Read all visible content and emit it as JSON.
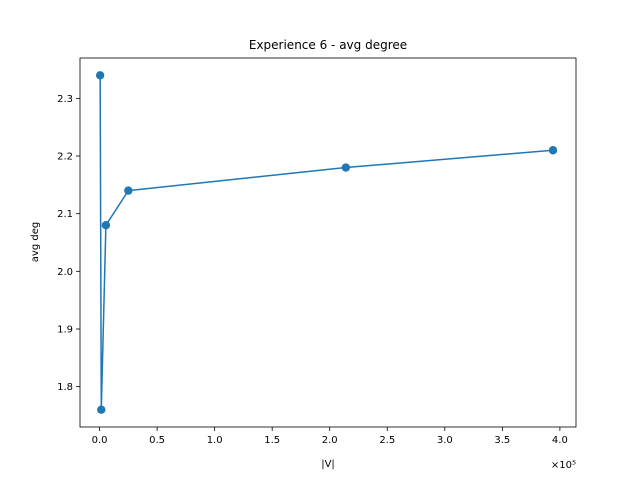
{
  "chart_data": {
    "type": "line",
    "title": "Experience 6 - avg degree",
    "xlabel": "|V|",
    "ylabel": "avg deg",
    "x_offset_label": "×10⁵",
    "xlim": [
      -0.17,
      4.14
    ],
    "ylim": [
      1.73,
      2.37
    ],
    "x_ticks": [
      0.0,
      0.5,
      1.0,
      1.5,
      2.0,
      2.5,
      3.0,
      3.5,
      4.0
    ],
    "x_tick_labels": [
      "0.0",
      "0.5",
      "1.0",
      "1.5",
      "2.0",
      "2.5",
      "3.0",
      "3.5",
      "4.0"
    ],
    "y_ticks": [
      1.8,
      1.9,
      2.0,
      2.1,
      2.2,
      2.3
    ],
    "y_tick_labels": [
      "1.8",
      "1.9",
      "2.0",
      "2.1",
      "2.2",
      "2.3"
    ],
    "grid": false,
    "series": [
      {
        "color": "#1f77b4",
        "marker": "circle",
        "x": [
          0.005,
          0.015,
          0.055,
          0.25,
          2.14,
          3.94
        ],
        "y": [
          2.34,
          1.76,
          2.08,
          2.14,
          2.18,
          2.21
        ]
      }
    ]
  }
}
